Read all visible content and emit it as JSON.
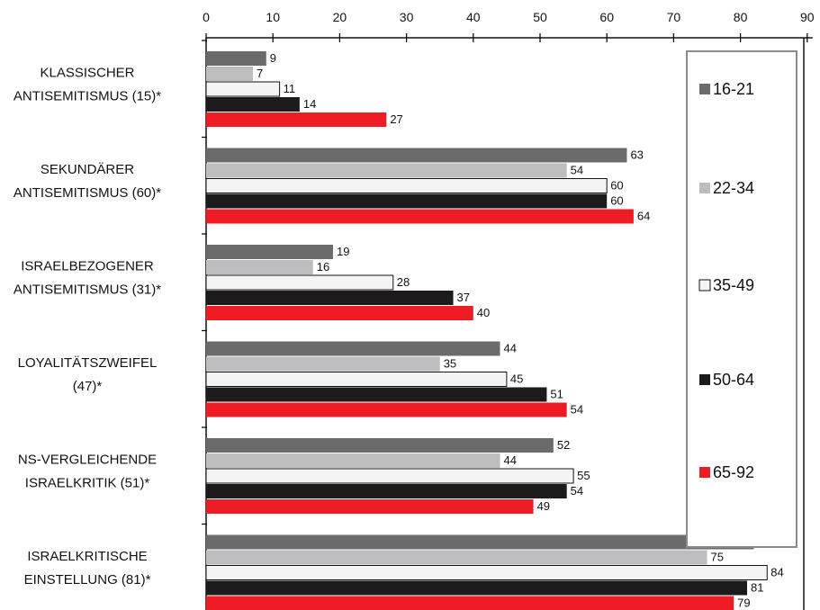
{
  "chart_data": {
    "type": "bar",
    "orientation": "horizontal",
    "x_ticks": [
      0,
      10,
      20,
      30,
      40,
      50,
      60,
      70,
      80,
      90
    ],
    "xlim": [
      0,
      90
    ],
    "x_axis_position": "top",
    "categories": [
      [
        "KLASSISCHER",
        "ANTISEMITISMUS (15)*"
      ],
      [
        "SEKUNDÄRER",
        "ANTISEMITISMUS (60)*"
      ],
      [
        "ISRAELBEZOGENER",
        "ANTISEMITISMUS (31)*"
      ],
      [
        "LOYALITÄTSZWEIFEL",
        "(47)*"
      ],
      [
        "NS-VERGLEICHENDE",
        "ISRAELKRITIK (51)*"
      ],
      [
        "ISRAELKRITISCHE",
        "EINSTELLUNG (81)*"
      ]
    ],
    "series": [
      {
        "name": "16-21",
        "color": "#6b6b6b",
        "values": [
          9,
          63,
          19,
          44,
          52,
          82
        ]
      },
      {
        "name": "22-34",
        "color": "#bdbdbf",
        "values": [
          7,
          54,
          16,
          35,
          44,
          75
        ]
      },
      {
        "name": "35-49",
        "color": "#f4f4f4",
        "values": [
          11,
          60,
          28,
          45,
          55,
          84
        ]
      },
      {
        "name": "50-64",
        "color": "#1c1a1a",
        "values": [
          14,
          60,
          37,
          51,
          54,
          81
        ]
      },
      {
        "name": "65-92",
        "color": "#ee1c25",
        "values": [
          27,
          64,
          40,
          54,
          49,
          79
        ]
      }
    ],
    "legend_placement": "right, inside plot area",
    "grid": false
  }
}
